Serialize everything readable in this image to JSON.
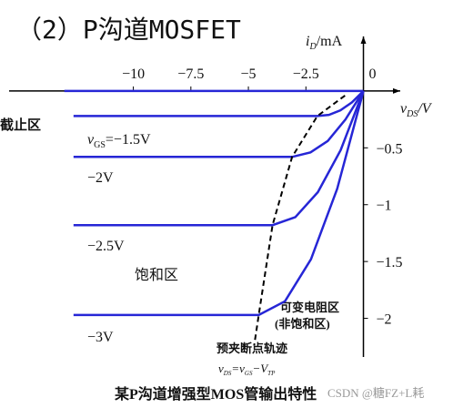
{
  "chart_data": {
    "type": "line",
    "title": "（2）P沟道MOSFET",
    "ylabel": [
      "i",
      "D",
      "/mA"
    ],
    "xlabel": [
      "v",
      "DS",
      "/V"
    ],
    "xlim": [
      -15.4,
      1.6
    ],
    "ylim": [
      -2.34,
      0.48
    ],
    "xticks": [
      {
        "value": -10,
        "label": "−10"
      },
      {
        "value": -7.5,
        "label": "−7.5"
      },
      {
        "value": -5,
        "label": "−5"
      },
      {
        "value": -2.5,
        "label": "−2.5"
      },
      0
    ],
    "yticks": [
      {
        "value": -0.5,
        "label": "−0.5"
      },
      {
        "value": -1,
        "label": "−1"
      },
      {
        "value": -1.5,
        "label": "−1.5"
      },
      {
        "value": -2,
        "label": "−2"
      }
    ],
    "series": [
      {
        "color": "#2626d6",
        "x": [
          -13,
          0
        ],
        "values": [
          0,
          0
        ]
      },
      {
        "name": [
          "v",
          "GS",
          "=−1.5V"
        ],
        "color": "#2626d6",
        "x": [
          -12.6,
          -2.0,
          -1.5,
          -1.0,
          -0.5,
          0
        ],
        "values": [
          -0.22,
          -0.22,
          -0.21,
          -0.17,
          -0.1,
          0
        ]
      },
      {
        "name": "−2V",
        "color": "#2626d6",
        "x": [
          -12.6,
          -3.1,
          -2.3,
          -1.55,
          -0.78,
          0
        ],
        "values": [
          -0.58,
          -0.58,
          -0.54,
          -0.44,
          -0.25,
          0
        ]
      },
      {
        "name": "−2.5V",
        "color": "#2626d6",
        "x": [
          -12.6,
          -3.95,
          -2.96,
          -1.98,
          -0.99,
          0
        ],
        "values": [
          -1.18,
          -1.18,
          -1.11,
          -0.89,
          -0.52,
          0
        ]
      },
      {
        "name": "−3V",
        "color": "#2626d6",
        "x": [
          -12.6,
          -4.55,
          -3.41,
          -2.28,
          -1.14,
          0
        ],
        "values": [
          -1.97,
          -1.97,
          -1.85,
          -1.48,
          -0.86,
          0
        ]
      },
      {
        "name": "预夹断点轨迹",
        "color": "#000000",
        "dashed": true,
        "x": [
          -0.8,
          -2.0,
          -3.1,
          -3.95,
          -4.55,
          -4.75
        ],
        "values": [
          -0.04,
          -0.22,
          -0.58,
          -1.18,
          -1.97,
          -2.24
        ]
      }
    ],
    "annotations": [
      "截止区",
      "饱和区",
      "可变电阻区",
      "(非饱和区)"
    ],
    "boundary_formula": [
      "v",
      "DS",
      "=v",
      "GS",
      "−V",
      "TP"
    ],
    "caption": "某P沟道增强型MOS管输出特性",
    "watermark": "CSDN @糖FZ+L耗"
  }
}
